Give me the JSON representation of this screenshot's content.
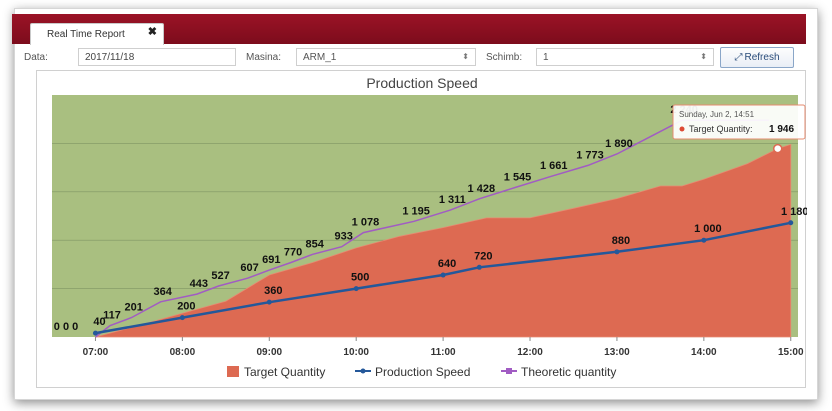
{
  "tab": {
    "label": "Real Time Report",
    "close_glyph": "✖"
  },
  "filters": {
    "data_label": "Data:",
    "data_value": "2017/11/18",
    "masina_label": "Masina:",
    "masina_value": "ARM_1",
    "schimb_label": "Schimb:",
    "schimb_value": "1",
    "select_arrow": "⬍",
    "refresh_label": "Refresh",
    "refresh_icon": "⤢"
  },
  "colors": {
    "header_bar": "#8a0f20",
    "plot_bg": "#a9bf80",
    "target_fill": "#dd6a52",
    "production_line": "#24589a",
    "theoretic_line": "#a15cc3"
  },
  "tooltip": {
    "date": "Sunday, Jun 2, 14:51",
    "series": "Target Quantity:",
    "value": "1 946"
  },
  "chart_data": {
    "type": "area",
    "title": "Production Speed",
    "x_ticks": [
      "07:00",
      "08:00",
      "09:00",
      "10:00",
      "11:00",
      "12:00",
      "13:00",
      "14:00",
      "15:00"
    ],
    "xlim": [
      "06:30",
      "15:05"
    ],
    "ylim": [
      0,
      2500
    ],
    "grid": true,
    "legend_position": "bottom-center",
    "series": [
      {
        "name": "Target Quantity",
        "kind": "area",
        "x": [
          "07:00",
          "07:30",
          "08:00",
          "08:30",
          "09:00",
          "09:30",
          "10:00",
          "10:30",
          "11:00",
          "11:30",
          "12:00",
          "12:30",
          "13:00",
          "13:30",
          "13:45",
          "14:00",
          "14:30",
          "14:51",
          "15:00"
        ],
        "values": [
          0,
          120,
          245,
          370,
          640,
          770,
          920,
          1040,
          1130,
          1230,
          1230,
          1330,
          1430,
          1560,
          1560,
          1630,
          1790,
          1946,
          1990
        ]
      },
      {
        "name": "Production Speed",
        "kind": "line",
        "x": [
          "07:00",
          "08:00",
          "09:00",
          "10:00",
          "11:00",
          "11:25",
          "13:00",
          "14:00",
          "15:00"
        ],
        "values": [
          40,
          200,
          360,
          500,
          640,
          720,
          880,
          1000,
          1180
        ],
        "labels": [
          "40",
          "200",
          "360",
          "500",
          "640",
          "720",
          "880",
          "1 000",
          "1 180"
        ]
      },
      {
        "name": "Theoretic quantity",
        "kind": "line",
        "x": [
          "07:00",
          "07:10",
          "07:25",
          "07:45",
          "08:10",
          "08:25",
          "08:45",
          "09:00",
          "09:15",
          "09:30",
          "09:50",
          "10:05",
          "10:40",
          "11:05",
          "11:25",
          "11:50",
          "12:15",
          "12:40",
          "13:00",
          "13:45",
          "14:15",
          "14:45"
        ],
        "values": [
          0,
          117,
          201,
          364,
          443,
          527,
          607,
          691,
          770,
          854,
          933,
          1078,
          1195,
          1311,
          1428,
          1545,
          1661,
          1773,
          1890,
          2240,
          2240,
          2240
        ],
        "labels": [
          "",
          "117",
          "201",
          "364",
          "443",
          "527",
          "607",
          "691",
          "770",
          "854",
          "933",
          "1 078",
          "1 195",
          "1 311",
          "1 428",
          "1 545",
          "1 661",
          "1 773",
          "1 890",
          "2 240",
          "",
          ""
        ]
      }
    ],
    "start_labels": [
      "0 0 0"
    ]
  }
}
